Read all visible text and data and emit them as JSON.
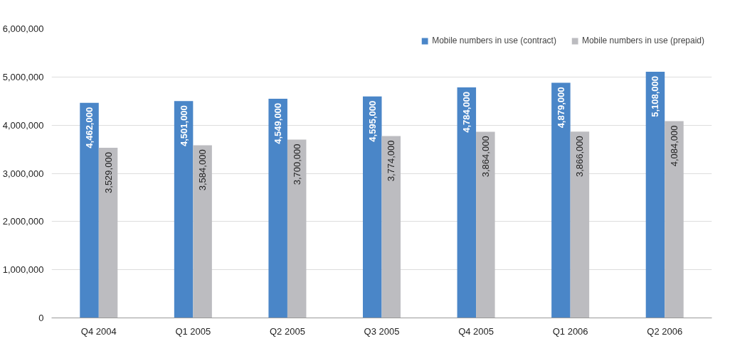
{
  "chart_data": {
    "type": "bar",
    "categories": [
      "Q4 2004",
      "Q1 2005",
      "Q2 2005",
      "Q3 2005",
      "Q4 2005",
      "Q1 2006",
      "Q2 2006"
    ],
    "series": [
      {
        "name": "Mobile numbers in use (contract)",
        "color": "#4a86c8",
        "values": [
          4462000,
          4501000,
          4549000,
          4595000,
          4784000,
          4879000,
          5108000
        ],
        "value_labels": [
          "4,462,000",
          "4,501,000",
          "4,549,000",
          "4,595,000",
          "4,784,000",
          "4,879,000",
          "5,108,000"
        ]
      },
      {
        "name": "Mobile numbers in use (prepaid)",
        "color": "#bcbcc0",
        "values": [
          3529000,
          3584000,
          3700000,
          3774000,
          3864000,
          3866000,
          4084000
        ],
        "value_labels": [
          "3,529,000",
          "3,584,000",
          "3,700,000",
          "3,774,000",
          "3,864,000",
          "3,866,000",
          "4,084,000"
        ]
      }
    ],
    "ylim": [
      0,
      6000000
    ],
    "yticks": [
      0,
      {
        "value": 1000000,
        "label": "1,000,000"
      },
      {
        "value": 2000000,
        "label": "2,000,000"
      },
      {
        "value": 3000000,
        "label": "3,000,000"
      },
      {
        "value": 4000000,
        "label": "4,000,000"
      },
      {
        "value": 5000000,
        "label": "5,000,000"
      },
      {
        "value": 6000000,
        "label": "6,000,000"
      }
    ],
    "grid": "y",
    "legend": "top right"
  }
}
